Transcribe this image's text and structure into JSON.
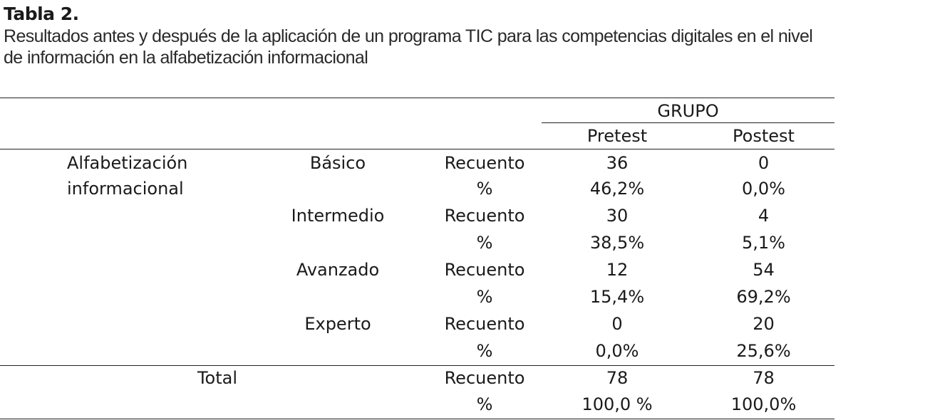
{
  "caption": {
    "number": "Tabla 2.",
    "title_line1": "Resultados antes y después de la aplicación de un programa TIC para las competencias digitales en el nivel",
    "title_line2": "de información en la alfabetización informacional"
  },
  "table": {
    "group_header": "GRUPO",
    "columns": [
      "Pretest",
      "Postest"
    ],
    "row_variable": [
      "Alfabetización",
      "informacional"
    ],
    "levels": [
      {
        "label": "Básico",
        "count_label": "Recuento",
        "pct_label": "%",
        "pretest_count": "36",
        "postest_count": "0",
        "pretest_pct": "46,2%",
        "postest_pct": "0,0%"
      },
      {
        "label": "Intermedio",
        "count_label": "Recuento",
        "pct_label": "%",
        "pretest_count": "30",
        "postest_count": "4",
        "pretest_pct": "38,5%",
        "postest_pct": "5,1%"
      },
      {
        "label": "Avanzado",
        "count_label": "Recuento",
        "pct_label": "%",
        "pretest_count": "12",
        "postest_count": "54",
        "pretest_pct": "15,4%",
        "postest_pct": "69,2%"
      },
      {
        "label": "Experto",
        "count_label": "Recuento",
        "pct_label": "%",
        "pretest_count": "0",
        "postest_count": "20",
        "pretest_pct": "0,0%",
        "postest_pct": "25,6%"
      }
    ],
    "total": {
      "label": "Total",
      "count_label": "Recuento",
      "pct_label": "%",
      "pretest_count": "78",
      "postest_count": "78",
      "pretest_pct": "100,0 %",
      "postest_pct": "100,0%"
    }
  }
}
